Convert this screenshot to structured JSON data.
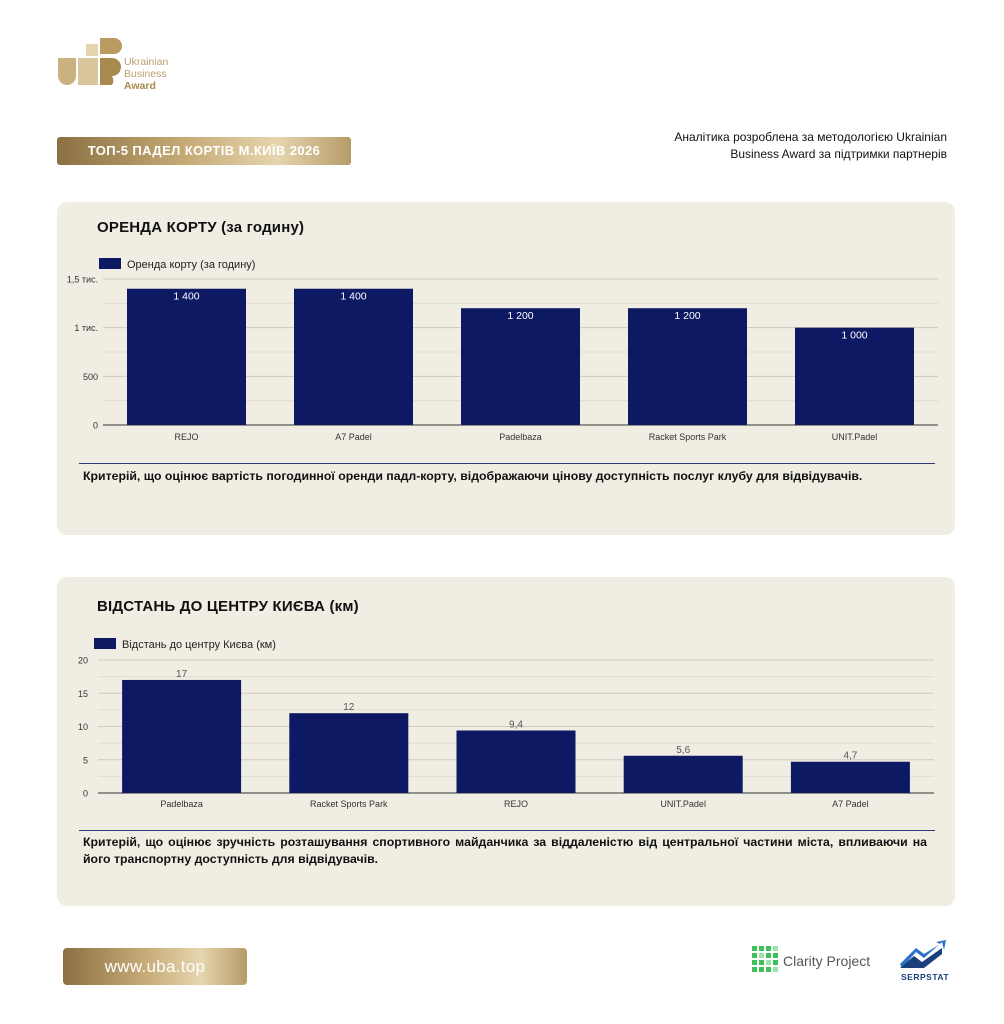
{
  "brand": {
    "logo_line1": "Ukrainian",
    "logo_line2": "Business",
    "logo_line3": "Award",
    "gold": "#b9a06b"
  },
  "header": {
    "title_badge": "ТОП-5 ПАДЕЛ КОРТІВ М.КИЇВ 2026",
    "note": "Аналітика розроблена за методологією Ukrainian Business Award за підтримки партнерів"
  },
  "footer": {
    "url": "www.uba.top",
    "partner1": "Clarity Project",
    "partner2": "SERPSTAT"
  },
  "panels": [
    {
      "title": "ОРЕНДА КОРТУ (за годину)",
      "caption": "Критерій, що оцінює вартість погодинної оренди падл-корту, відображаючи цінову доступність послуг клубу для відвідувачів."
    },
    {
      "title": "ВІДСТАНЬ ДО ЦЕНТРУ КИЄВА (км)",
      "caption": "Критерій, що оцінює зручність розташування спортивного майданчика за віддаленістю від центральної частини міста, впливаючи на його транспортну доступність для відвідувачів."
    }
  ],
  "chart_data": [
    {
      "type": "bar",
      "title": "ОРЕНДА КОРТУ (за годину)",
      "categories": [
        "REJO",
        "A7 Padel",
        "Padelbaza",
        "Racket Sports Park",
        "UNIT.Padel"
      ],
      "series": [
        {
          "name": "Оренда корту (за годину)",
          "values": [
            1400,
            1400,
            1200,
            1200,
            1000
          ],
          "color": "#0d1a63"
        }
      ],
      "data_labels": [
        "1 400",
        "1 400",
        "1 200",
        "1 200",
        "1 000"
      ],
      "label_position": "inside",
      "ylim": [
        0,
        1500
      ],
      "yticks": [
        0,
        500,
        1000,
        1500
      ],
      "ytick_labels": [
        "0",
        "500",
        "1 тис.",
        "1,5 тис."
      ],
      "minor_grid": true,
      "grid": true,
      "legend": "top-left"
    },
    {
      "type": "bar",
      "title": "ВІДСТАНЬ ДО ЦЕНТРУ КИЄВА (км)",
      "categories": [
        "Padelbaza",
        "Racket Sports Park",
        "REJO",
        "UNIT.Padel",
        "A7 Padel"
      ],
      "series": [
        {
          "name": "Відстань до центру Києва (км)",
          "values": [
            17,
            12,
            9.4,
            5.6,
            4.7
          ],
          "color": "#0d1a63"
        }
      ],
      "data_labels": [
        "17",
        "12",
        "9,4",
        "5,6",
        "4,7"
      ],
      "label_position": "above",
      "ylim": [
        0,
        20
      ],
      "yticks": [
        0,
        5,
        10,
        15,
        20
      ],
      "ytick_labels": [
        "0",
        "5",
        "10",
        "15",
        "20"
      ],
      "minor_grid": true,
      "grid": true,
      "legend": "top-left"
    }
  ]
}
